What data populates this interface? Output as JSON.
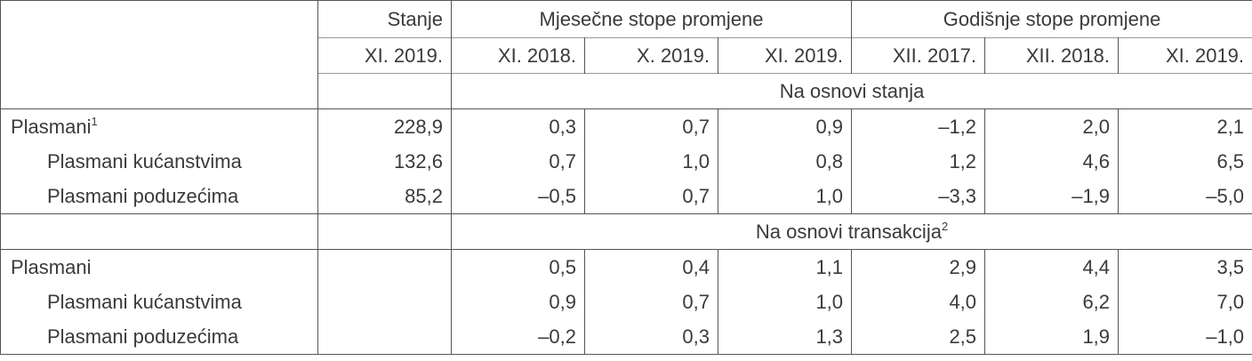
{
  "header": {
    "stanje": "Stanje",
    "mjesecne": "Mjesečne stope promjene",
    "godisnje": "Godišnje stope promjene",
    "periods": [
      "XI. 2019.",
      "XI. 2018.",
      "X. 2019.",
      "XI. 2019.",
      "XII. 2017.",
      "XII. 2018.",
      "XI. 2019."
    ]
  },
  "sections": [
    {
      "title": "Na osnovi stanja",
      "title_sup": "",
      "rows": [
        {
          "label": "Plasmani",
          "sup": "1",
          "indent": false,
          "values": [
            "228,9",
            "0,3",
            "0,7",
            "0,9",
            "–1,2",
            "2,0",
            "2,1"
          ]
        },
        {
          "label": "Plasmani kućanstvima",
          "sup": "",
          "indent": true,
          "values": [
            "132,6",
            "0,7",
            "1,0",
            "0,8",
            "1,2",
            "4,6",
            "6,5"
          ]
        },
        {
          "label": "Plasmani poduzećima",
          "sup": "",
          "indent": true,
          "values": [
            "85,2",
            "–0,5",
            "0,7",
            "1,0",
            "–3,3",
            "–1,9",
            "–5,0"
          ]
        }
      ]
    },
    {
      "title": "Na osnovi transakcija",
      "title_sup": "2",
      "rows": [
        {
          "label": "Plasmani",
          "sup": "",
          "indent": false,
          "values": [
            "",
            "0,5",
            "0,4",
            "1,1",
            "2,9",
            "4,4",
            "3,5"
          ]
        },
        {
          "label": "Plasmani kućanstvima",
          "sup": "",
          "indent": true,
          "values": [
            "",
            "0,9",
            "0,7",
            "1,0",
            "4,0",
            "6,2",
            "7,0"
          ]
        },
        {
          "label": "Plasmani poduzećima",
          "sup": "",
          "indent": true,
          "values": [
            "",
            "–0,2",
            "0,3",
            "1,3",
            "2,5",
            "1,9",
            "–1,0"
          ]
        }
      ]
    }
  ]
}
